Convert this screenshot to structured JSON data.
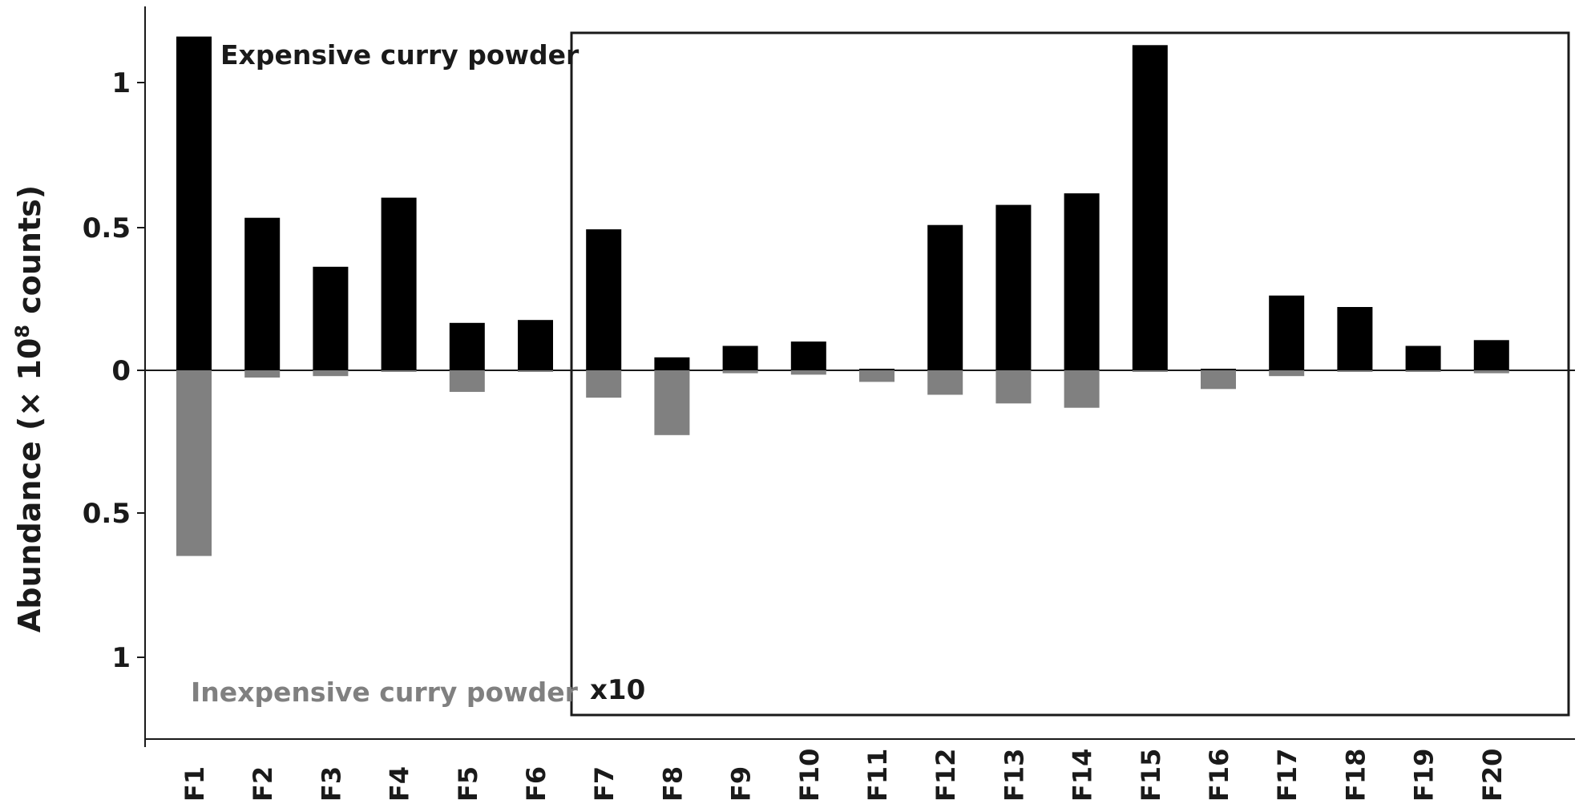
{
  "chart_data": {
    "type": "bar",
    "ylabel_main": "Abundance (× 10",
    "ylabel_exp": "8",
    "ylabel_tail": " counts)",
    "yticks_pos": [
      "1",
      "0.5",
      "0"
    ],
    "yticks_neg": [
      "0.5",
      "1"
    ],
    "categories": [
      "F1",
      "F2",
      "F3",
      "F4",
      "F5",
      "F6",
      "F7",
      "F8",
      "F9",
      "F10",
      "F11",
      "F12",
      "F13",
      "F14",
      "F15",
      "F16",
      "F17",
      "F18",
      "F19",
      "F20"
    ],
    "series": [
      {
        "name": "Expensive curry powder",
        "color": "#000000",
        "direction": "up",
        "values": [
          1.16,
          0.53,
          0.36,
          0.6,
          0.165,
          0.175,
          0.049,
          0.0045,
          0.0085,
          0.01,
          0.0,
          0.0505,
          0.0575,
          0.0615,
          0.113,
          0.0,
          0.026,
          0.022,
          0.0085,
          0.0105
        ]
      },
      {
        "name": "Inexpensive curry powder",
        "color": "#808080",
        "direction": "down",
        "values": [
          0.645,
          0.025,
          0.02,
          0.0,
          0.075,
          0.0,
          0.0095,
          0.0225,
          0.001,
          0.0015,
          0.004,
          0.0085,
          0.0115,
          0.013,
          0.0,
          0.0065,
          0.002,
          0.0,
          0.0,
          0.001
        ]
      }
    ],
    "ylim": [
      -1.2,
      1.2
    ],
    "inset": {
      "label": "x10",
      "scale_factor": 10,
      "from_category": "F7",
      "to_category": "F20"
    }
  }
}
